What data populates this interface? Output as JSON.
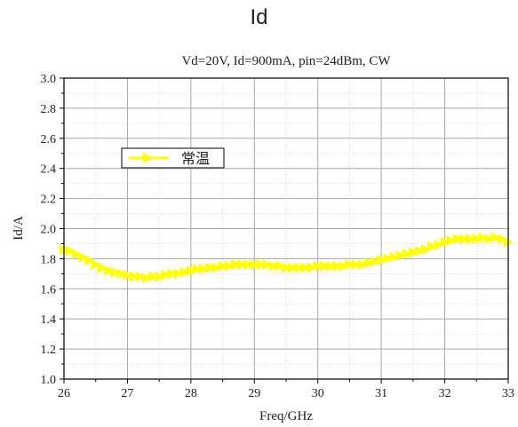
{
  "page_title": "Id",
  "chart_data": {
    "type": "line",
    "title": "Vd=20V, Id=900mA, pin=24dBm, CW",
    "xlabel": "Freq/GHz",
    "ylabel": "Id/A",
    "xlim": [
      26,
      33
    ],
    "ylim": [
      1.0,
      3.0
    ],
    "x_ticks": [
      "26",
      "27",
      "28",
      "29",
      "30",
      "31",
      "32",
      "33"
    ],
    "y_ticks": [
      "1.0",
      "1.2",
      "1.4",
      "1.6",
      "1.8",
      "2.0",
      "2.2",
      "2.4",
      "2.6",
      "2.8",
      "3.0"
    ],
    "grid": true,
    "legend_position": "upper-left",
    "series": [
      {
        "name": "常温",
        "color": "#ffff00",
        "marker": "right-triangle",
        "x": [
          26.0,
          26.1,
          26.2,
          26.3,
          26.4,
          26.5,
          26.6,
          26.7,
          26.8,
          26.9,
          27.0,
          27.1,
          27.2,
          27.3,
          27.4,
          27.5,
          27.6,
          27.7,
          27.8,
          27.9,
          28.0,
          28.1,
          28.2,
          28.3,
          28.4,
          28.5,
          28.6,
          28.7,
          28.8,
          28.9,
          29.0,
          29.1,
          29.2,
          29.3,
          29.4,
          29.5,
          29.6,
          29.7,
          29.8,
          29.9,
          30.0,
          30.1,
          30.2,
          30.3,
          30.4,
          30.5,
          30.6,
          30.7,
          30.8,
          30.9,
          31.0,
          31.1,
          31.2,
          31.3,
          31.4,
          31.5,
          31.6,
          31.7,
          31.8,
          31.9,
          32.0,
          32.1,
          32.2,
          32.3,
          32.4,
          32.5,
          32.6,
          32.7,
          32.8,
          32.9,
          33.0
        ],
        "y": [
          1.86,
          1.85,
          1.83,
          1.81,
          1.79,
          1.76,
          1.74,
          1.72,
          1.71,
          1.7,
          1.69,
          1.68,
          1.68,
          1.67,
          1.68,
          1.68,
          1.69,
          1.7,
          1.7,
          1.71,
          1.72,
          1.73,
          1.73,
          1.74,
          1.74,
          1.75,
          1.75,
          1.76,
          1.76,
          1.76,
          1.76,
          1.76,
          1.76,
          1.75,
          1.75,
          1.74,
          1.74,
          1.74,
          1.74,
          1.74,
          1.75,
          1.75,
          1.75,
          1.75,
          1.75,
          1.76,
          1.76,
          1.76,
          1.77,
          1.78,
          1.79,
          1.8,
          1.81,
          1.82,
          1.83,
          1.84,
          1.85,
          1.86,
          1.88,
          1.89,
          1.91,
          1.92,
          1.93,
          1.93,
          1.93,
          1.93,
          1.94,
          1.93,
          1.94,
          1.93,
          1.91
        ]
      }
    ]
  }
}
